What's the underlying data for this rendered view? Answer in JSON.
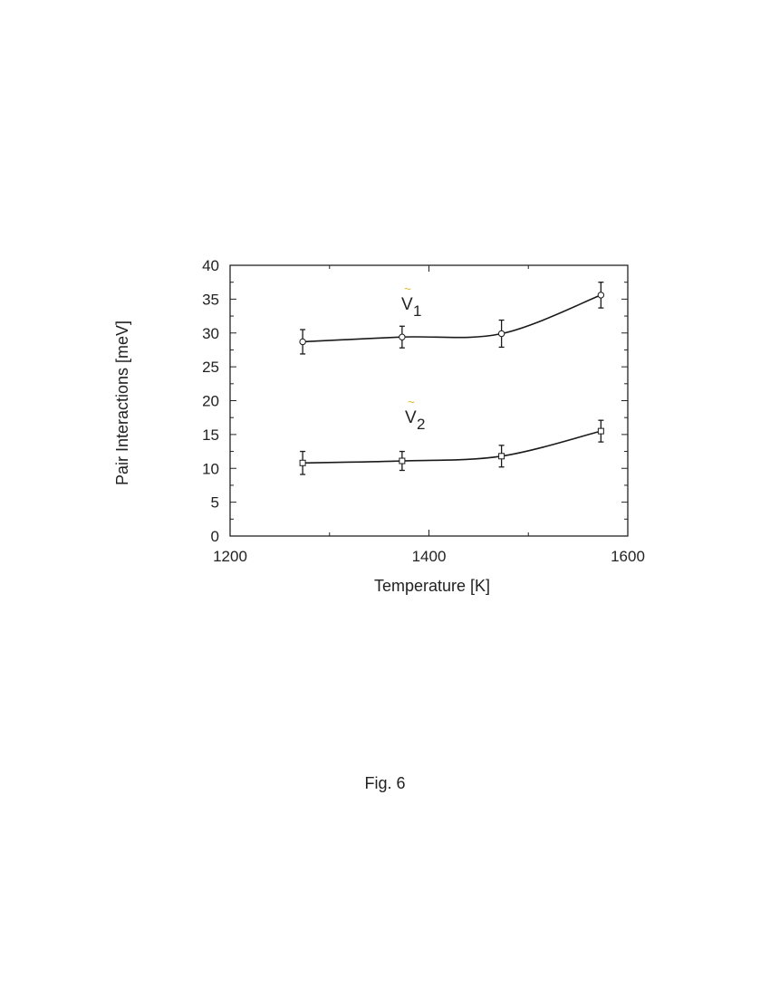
{
  "figure": {
    "caption": "Fig. 6"
  },
  "chart_data": {
    "type": "line",
    "xlabel": "Temperature [K]",
    "ylabel": "Pair Interactions [meV]",
    "xlim": [
      1200,
      1600
    ],
    "ylim": [
      0,
      40
    ],
    "xticks": [
      1200,
      1400,
      1600
    ],
    "yticks": [
      0,
      5,
      10,
      15,
      20,
      25,
      30,
      35,
      40
    ],
    "grid": false,
    "series": [
      {
        "name": "V1",
        "label_tilde": "~",
        "label_main": "V",
        "label_sub": "1",
        "marker": "circle",
        "x": [
          1273,
          1373,
          1473,
          1573
        ],
        "y": [
          28.7,
          29.4,
          29.9,
          35.6
        ],
        "err": [
          1.8,
          1.6,
          2.0,
          1.9
        ]
      },
      {
        "name": "V2",
        "label_tilde": "~",
        "label_main": "V",
        "label_sub": "2",
        "marker": "square",
        "x": [
          1273,
          1373,
          1473,
          1573
        ],
        "y": [
          10.8,
          11.1,
          11.8,
          15.5
        ],
        "err": [
          1.7,
          1.4,
          1.6,
          1.6
        ]
      }
    ]
  }
}
